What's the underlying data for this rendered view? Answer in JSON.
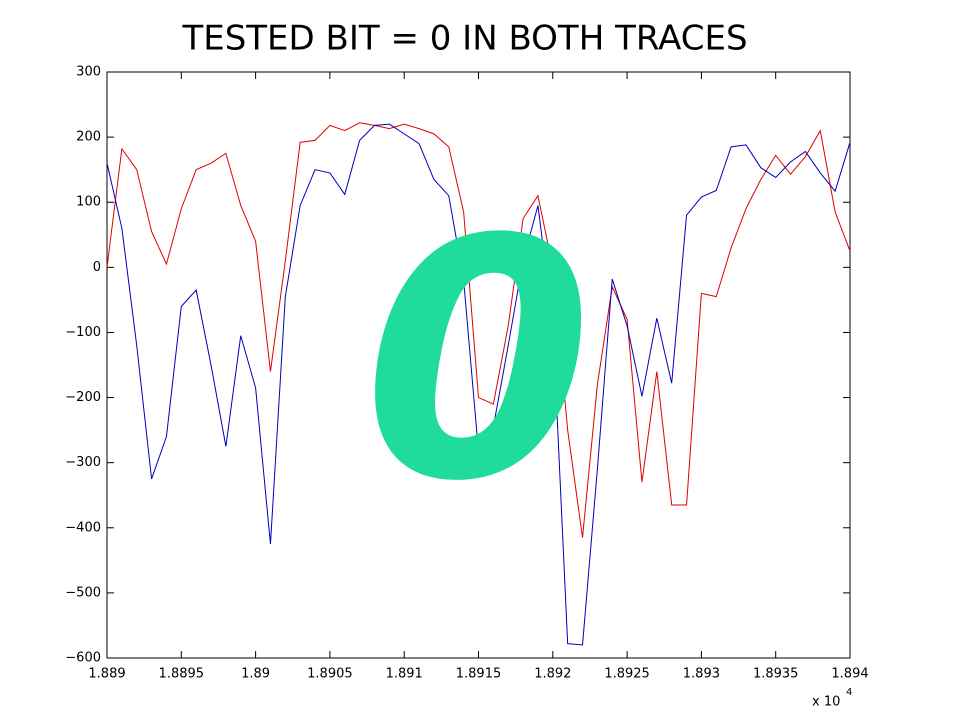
{
  "chart_data": {
    "type": "line",
    "title": "TESTED BIT = 0 IN BOTH TRACES",
    "annotation": "0",
    "annotation_color": "#20dc9c",
    "x_multiplier": {
      "base": "x 10",
      "exponent": "4"
    },
    "x": [
      1.889,
      1.8891,
      1.8892,
      1.8893,
      1.8894,
      1.8895,
      1.8896,
      1.8897,
      1.8898,
      1.8899,
      1.89,
      1.8901,
      1.8902,
      1.8903,
      1.8904,
      1.8905,
      1.8906,
      1.8907,
      1.8908,
      1.8909,
      1.891,
      1.8911,
      1.8912,
      1.8913,
      1.8914,
      1.8915,
      1.8916,
      1.8917,
      1.8918,
      1.8919,
      1.892,
      1.8921,
      1.8922,
      1.8923,
      1.8924,
      1.8925,
      1.8926,
      1.8927,
      1.8928,
      1.8929,
      1.893,
      1.8931,
      1.8932,
      1.8933,
      1.8934,
      1.8935,
      1.8936,
      1.8937,
      1.8938,
      1.8939,
      1.894
    ],
    "series": [
      {
        "name": "red trace",
        "color": "#e00000",
        "values": [
          0,
          182,
          150,
          55,
          5,
          90,
          150,
          160,
          175,
          95,
          40,
          -160,
          10,
          192,
          195,
          218,
          210,
          222,
          218,
          213,
          220,
          213,
          205,
          185,
          85,
          -200,
          -210,
          -90,
          75,
          110,
          0,
          -250,
          -415,
          -180,
          -30,
          -80,
          -330,
          -160,
          -365,
          -365,
          -40,
          -45,
          30,
          90,
          135,
          172,
          143,
          170,
          210,
          85,
          25
        ]
      },
      {
        "name": "blue trace",
        "color": "#0000c0",
        "values": [
          160,
          60,
          -120,
          -325,
          -260,
          -60,
          -35,
          -150,
          -275,
          -105,
          -185,
          -425,
          -45,
          95,
          150,
          145,
          112,
          195,
          218,
          220,
          205,
          190,
          135,
          110,
          -20,
          -283,
          -245,
          -120,
          10,
          95,
          -85,
          -578,
          -580,
          -310,
          -18,
          -90,
          -198,
          -78,
          -178,
          80,
          108,
          118,
          185,
          188,
          153,
          138,
          162,
          178,
          145,
          117,
          192
        ]
      }
    ],
    "xlim": [
      1.889,
      1.894
    ],
    "xticks": [
      1.889,
      1.8895,
      1.89,
      1.8905,
      1.891,
      1.8915,
      1.892,
      1.8925,
      1.893,
      1.8935,
      1.894
    ],
    "ylim": [
      -600,
      300
    ],
    "yticks": [
      {
        "value": -600,
        "label": "−600"
      },
      {
        "value": -500,
        "label": "−500"
      },
      {
        "value": -400,
        "label": "−400"
      },
      {
        "value": -300,
        "label": "−300"
      },
      {
        "value": -200,
        "label": "−200"
      },
      {
        "value": -100,
        "label": "−100"
      },
      0,
      100,
      200,
      300
    ],
    "grid": false
  }
}
